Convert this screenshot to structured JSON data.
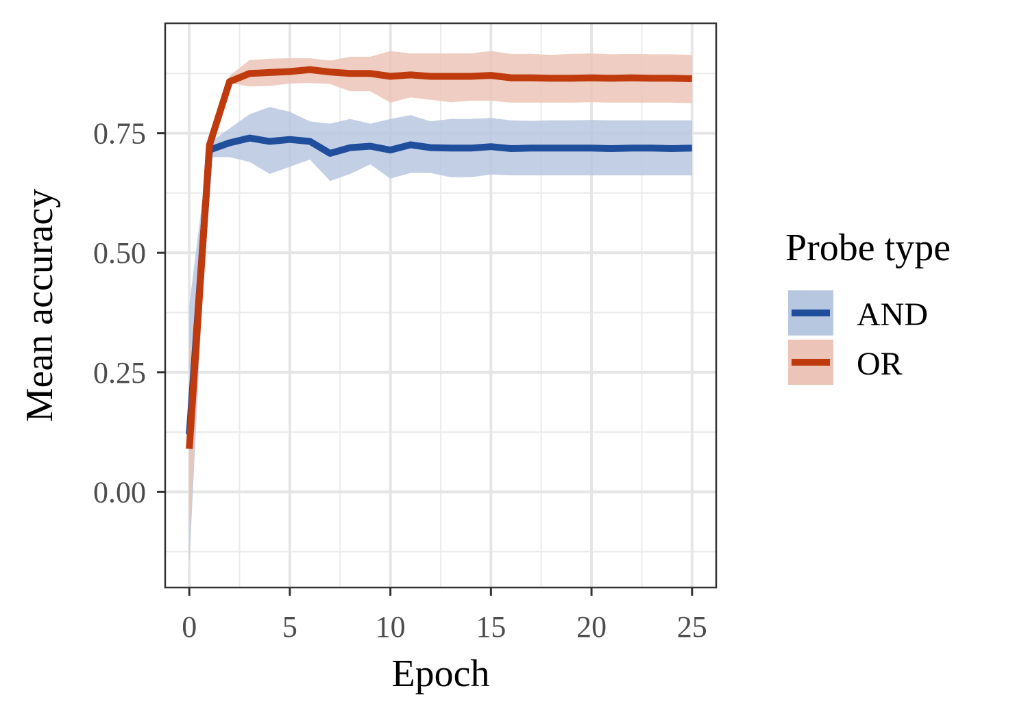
{
  "chart_data": {
    "type": "line",
    "xlabel": "Epoch",
    "ylabel": "Mean accuracy",
    "xlim": [
      -1.2,
      26.2
    ],
    "ylim": [
      -0.2,
      0.98
    ],
    "x_ticks": [
      0,
      5,
      10,
      15,
      20,
      25
    ],
    "x_tick_labels": [
      "0",
      "5",
      "10",
      "15",
      "20",
      "25"
    ],
    "y_ticks": [
      0.0,
      0.25,
      0.5,
      0.75
    ],
    "y_tick_labels": [
      "0.00",
      "0.25",
      "0.50",
      "0.75"
    ],
    "x_minor_ticks": [
      2.5,
      7.5,
      12.5,
      17.5,
      22.5
    ],
    "y_minor_ticks": [
      -0.125,
      0.125,
      0.375,
      0.625,
      0.875
    ],
    "grid": true,
    "legend": {
      "title": "Probe type",
      "position": "right"
    },
    "x": [
      0,
      1,
      2,
      3,
      4,
      5,
      6,
      7,
      8,
      9,
      10,
      11,
      12,
      13,
      14,
      15,
      16,
      17,
      18,
      19,
      20,
      21,
      22,
      23,
      24,
      25
    ],
    "series": [
      {
        "name": "AND",
        "color": "#1f4e9c",
        "band_color": "#b8c7e0",
        "values": [
          0.12,
          0.715,
          0.73,
          0.74,
          0.733,
          0.737,
          0.733,
          0.708,
          0.72,
          0.723,
          0.715,
          0.726,
          0.72,
          0.719,
          0.719,
          0.722,
          0.718,
          0.719,
          0.719,
          0.719,
          0.719,
          0.718,
          0.719,
          0.719,
          0.718,
          0.719
        ],
        "lower": [
          -0.15,
          0.7,
          0.7,
          0.69,
          0.665,
          0.68,
          0.695,
          0.65,
          0.665,
          0.685,
          0.655,
          0.667,
          0.667,
          0.658,
          0.658,
          0.664,
          0.662,
          0.662,
          0.662,
          0.662,
          0.662,
          0.662,
          0.662,
          0.662,
          0.662,
          0.662
        ],
        "upper": [
          0.39,
          0.73,
          0.76,
          0.79,
          0.805,
          0.795,
          0.775,
          0.77,
          0.78,
          0.77,
          0.78,
          0.788,
          0.775,
          0.78,
          0.78,
          0.782,
          0.777,
          0.776,
          0.777,
          0.777,
          0.778,
          0.777,
          0.777,
          0.777,
          0.777,
          0.777
        ]
      },
      {
        "name": "OR",
        "color": "#bf3a0c",
        "band_color": "#ecc4b8",
        "values": [
          0.09,
          0.725,
          0.858,
          0.875,
          0.877,
          0.879,
          0.883,
          0.878,
          0.875,
          0.875,
          0.869,
          0.872,
          0.869,
          0.869,
          0.869,
          0.871,
          0.866,
          0.866,
          0.865,
          0.865,
          0.866,
          0.865,
          0.866,
          0.865,
          0.865,
          0.864
        ],
        "lower": [
          -0.1,
          0.7,
          0.855,
          0.848,
          0.849,
          0.854,
          0.855,
          0.853,
          0.838,
          0.838,
          0.814,
          0.825,
          0.82,
          0.815,
          0.818,
          0.818,
          0.814,
          0.814,
          0.814,
          0.814,
          0.815,
          0.814,
          0.814,
          0.814,
          0.814,
          0.813
        ],
        "upper": [
          0.28,
          0.745,
          0.87,
          0.903,
          0.906,
          0.907,
          0.907,
          0.902,
          0.91,
          0.91,
          0.922,
          0.917,
          0.917,
          0.917,
          0.917,
          0.922,
          0.916,
          0.916,
          0.914,
          0.916,
          0.917,
          0.915,
          0.916,
          0.915,
          0.915,
          0.914
        ]
      }
    ]
  }
}
